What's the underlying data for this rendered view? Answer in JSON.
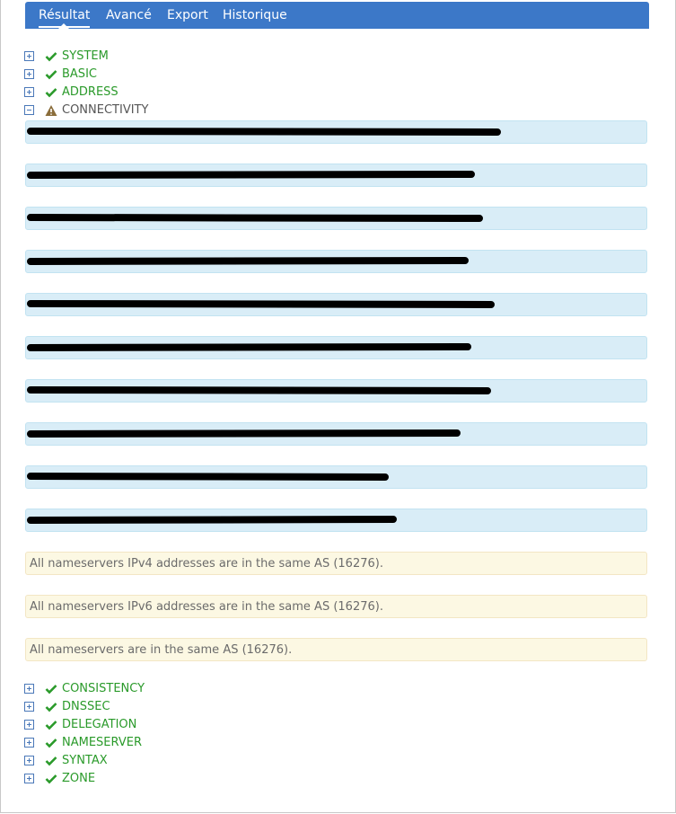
{
  "tabs": [
    "Résultat",
    "Avancé",
    "Export",
    "Historique"
  ],
  "sections_before": [
    "SYSTEM",
    "BASIC",
    "ADDRESS"
  ],
  "expanded": {
    "label": "CONNECTIVITY",
    "warnings": [
      "All nameservers IPv4 addresses are in the same AS (16276).",
      "All nameservers IPv6 addresses are in the same AS (16276).",
      "All nameservers are in the same AS (16276)."
    ]
  },
  "sections_after": [
    "CONSISTENCY",
    "DNSSEC",
    "DELEGATION",
    "NAMESERVER",
    "SYNTAX",
    "ZONE"
  ]
}
